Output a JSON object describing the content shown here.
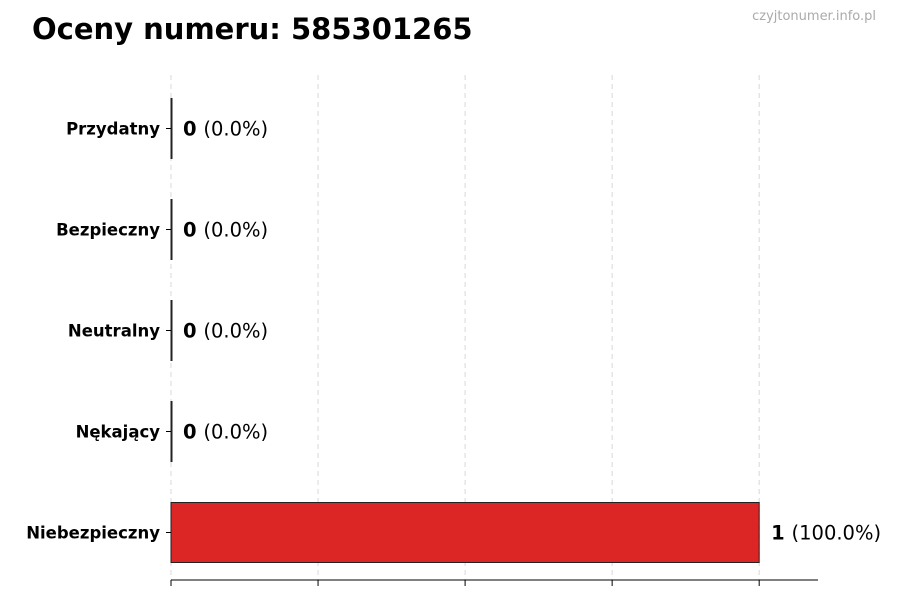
{
  "chart_data": {
    "type": "bar",
    "orientation": "horizontal",
    "title": "Oceny numeru: 585301265",
    "watermark": "czyjtonumer.info.pl",
    "categories": [
      "Przydatny",
      "Bezpieczny",
      "Neutralny",
      "Nękający",
      "Niebezpieczny"
    ],
    "values": [
      0,
      0,
      0,
      0,
      1
    ],
    "labels": [
      {
        "count": "0",
        "pct": "(0.0%)"
      },
      {
        "count": "0",
        "pct": "(0.0%)"
      },
      {
        "count": "0",
        "pct": "(0.0%)"
      },
      {
        "count": "0",
        "pct": "(0.0%)"
      },
      {
        "count": "1",
        "pct": "(100.0%)"
      }
    ],
    "colors": [
      "#2e9e44",
      "#2e9e44",
      "#888888",
      "#e07b00",
      "#dc2626"
    ],
    "xlim": [
      0,
      1.1
    ],
    "xticks": [
      0,
      0.25,
      0.5,
      0.75,
      1
    ],
    "xtick_labels_shown": false,
    "grid": "vertical dashed",
    "xlabel": "",
    "ylabel": ""
  }
}
